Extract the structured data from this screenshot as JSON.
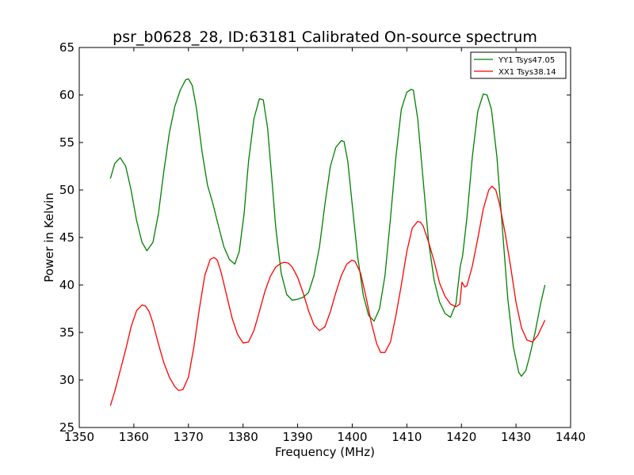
{
  "chart_data": {
    "type": "line",
    "title": "psr_b0628_28, ID:63181 Calibrated On-source spectrum",
    "xlabel": "Frequency (MHz)",
    "ylabel": "Power in Kelvin",
    "xlim": [
      1350,
      1440
    ],
    "ylim": [
      25,
      65
    ],
    "xticks": [
      1350,
      1360,
      1370,
      1380,
      1390,
      1400,
      1410,
      1420,
      1430,
      1440
    ],
    "yticks": [
      25,
      30,
      35,
      40,
      45,
      50,
      55,
      60,
      65
    ],
    "grid": false,
    "legend_position": "top-right",
    "series": [
      {
        "name": "YY1 Tsys47.05",
        "color": "#008000",
        "x": [
          1355.7,
          1356.5,
          1357.5,
          1358.5,
          1359.5,
          1360.5,
          1361.5,
          1362.4,
          1363.5,
          1364.5,
          1365.5,
          1366.5,
          1367.5,
          1368.5,
          1369.5,
          1370.0,
          1370.7,
          1371.5,
          1372.5,
          1373.5,
          1374.5,
          1375.5,
          1376.5,
          1377.5,
          1378.5,
          1379.3,
          1380.2,
          1381.0,
          1382.0,
          1383.0,
          1383.7,
          1384.5,
          1385.3,
          1386.0,
          1387.0,
          1388.0,
          1389.0,
          1390.0,
          1391.0,
          1392.0,
          1393.0,
          1394.0,
          1395.0,
          1396.0,
          1397.0,
          1398.0,
          1398.5,
          1399.2,
          1400.0,
          1401.0,
          1402.0,
          1403.0,
          1404.0,
          1405.0,
          1406.0,
          1407.0,
          1408.0,
          1409.0,
          1410.0,
          1410.8,
          1411.2,
          1412.0,
          1413.0,
          1414.0,
          1415.0,
          1416.0,
          1417.0,
          1418.0,
          1419.0,
          1419.8,
          1420.2,
          1421.0,
          1422.0,
          1423.0,
          1424.0,
          1424.7,
          1425.5,
          1426.5,
          1427.5,
          1428.5,
          1429.5,
          1430.5,
          1431.0,
          1431.8,
          1432.5,
          1433.5,
          1434.5,
          1435.3
        ],
        "y": [
          51.2,
          52.8,
          53.4,
          52.5,
          50.0,
          46.8,
          44.5,
          43.6,
          44.5,
          47.5,
          52.0,
          56.0,
          58.8,
          60.5,
          61.6,
          61.7,
          61.0,
          58.5,
          54.0,
          50.5,
          48.5,
          46.2,
          44.0,
          42.7,
          42.2,
          43.5,
          47.5,
          53.0,
          57.5,
          59.6,
          59.5,
          56.5,
          51.0,
          46.0,
          41.2,
          39.0,
          38.4,
          38.5,
          38.7,
          39.2,
          41.0,
          44.0,
          48.5,
          52.5,
          54.5,
          55.2,
          55.1,
          53.0,
          48.5,
          43.0,
          39.0,
          36.8,
          36.2,
          37.5,
          41.0,
          47.0,
          53.5,
          58.5,
          60.3,
          60.6,
          60.5,
          57.5,
          51.0,
          44.5,
          40.5,
          38.2,
          37.0,
          36.6,
          38.0,
          42.0,
          43.0,
          47.0,
          53.5,
          58.3,
          60.1,
          60.0,
          58.5,
          53.5,
          46.0,
          38.5,
          33.5,
          30.8,
          30.4,
          31.0,
          32.5,
          35.0,
          38.0,
          40.0
        ]
      },
      {
        "name": "XX1 Tsys38.14",
        "color": "#ff0000",
        "x": [
          1355.7,
          1356.5,
          1357.5,
          1358.5,
          1359.5,
          1360.5,
          1361.5,
          1362.1,
          1362.8,
          1363.5,
          1364.5,
          1365.5,
          1366.5,
          1367.5,
          1368.2,
          1369.0,
          1370.0,
          1371.0,
          1372.0,
          1373.0,
          1374.0,
          1374.7,
          1375.3,
          1376.0,
          1377.0,
          1378.0,
          1379.0,
          1380.0,
          1381.0,
          1382.0,
          1383.0,
          1384.0,
          1385.0,
          1386.0,
          1387.0,
          1387.6,
          1388.3,
          1389.0,
          1390.0,
          1391.0,
          1392.0,
          1393.0,
          1394.0,
          1395.0,
          1396.0,
          1397.0,
          1398.0,
          1399.0,
          1399.9,
          1400.5,
          1401.5,
          1402.5,
          1403.5,
          1404.5,
          1405.2,
          1406.0,
          1407.0,
          1408.0,
          1409.0,
          1410.0,
          1411.0,
          1412.0,
          1412.5,
          1413.0,
          1414.0,
          1415.0,
          1416.0,
          1417.0,
          1418.0,
          1419.0,
          1419.7,
          1420.1,
          1420.6,
          1421.0,
          1422.0,
          1423.0,
          1424.0,
          1425.0,
          1425.6,
          1426.3,
          1427.0,
          1428.0,
          1429.0,
          1430.0,
          1431.0,
          1432.0,
          1433.0,
          1434.0,
          1435.3
        ],
        "y": [
          27.3,
          28.8,
          31.0,
          33.2,
          35.6,
          37.3,
          37.9,
          37.8,
          37.2,
          36.0,
          33.8,
          31.8,
          30.3,
          29.3,
          28.9,
          29.0,
          30.3,
          33.5,
          37.5,
          41.0,
          42.7,
          42.9,
          42.6,
          41.3,
          38.9,
          36.5,
          34.8,
          33.9,
          34.0,
          35.2,
          37.2,
          39.3,
          40.9,
          41.9,
          42.3,
          42.4,
          42.3,
          41.9,
          40.8,
          39.2,
          37.3,
          35.8,
          35.2,
          35.6,
          37.2,
          39.2,
          41.0,
          42.2,
          42.6,
          42.5,
          41.3,
          38.8,
          36.0,
          33.8,
          32.9,
          32.9,
          34.0,
          36.8,
          40.0,
          43.5,
          46.0,
          46.7,
          46.6,
          46.2,
          44.5,
          42.5,
          40.2,
          38.8,
          38.0,
          37.7,
          38.0,
          40.3,
          39.8,
          39.9,
          42.0,
          44.9,
          48.0,
          50.0,
          50.4,
          50.0,
          48.5,
          45.5,
          42.0,
          38.2,
          35.5,
          34.2,
          34.0,
          34.7,
          36.3
        ]
      }
    ]
  }
}
